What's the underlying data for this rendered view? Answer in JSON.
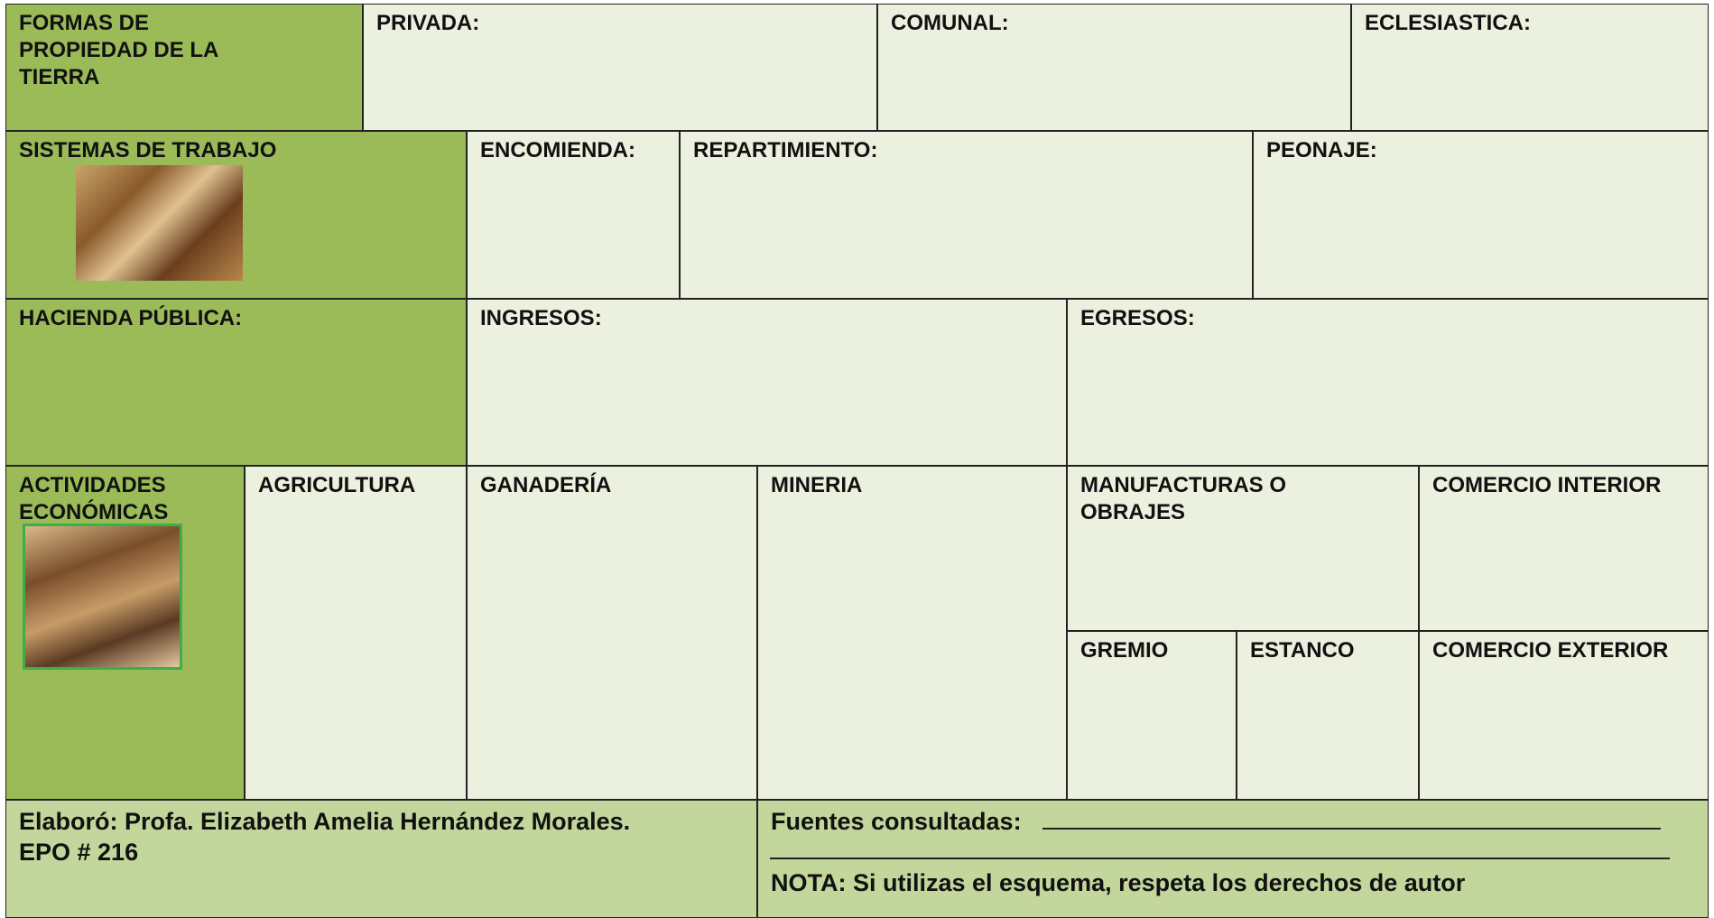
{
  "cells": [
    {
      "label": "FORMAS DE PROPIEDAD DE LA TIERRA"
    },
    {
      "label": "PRIVADA:"
    },
    {
      "label": "COMUNAL:"
    },
    {
      "label": "ECLESIASTICA:"
    },
    {
      "label": "SISTEMAS DE TRABAJO"
    },
    {
      "label": "ENCOMIENDA:"
    },
    {
      "label": "REPARTIMIENTO:"
    },
    {
      "label": "PEONAJE:"
    },
    {
      "label": "HACIENDA PÚBLICA:"
    },
    {
      "label": "INGRESOS:"
    },
    {
      "label": "EGRESOS:"
    },
    {
      "label": "ACTIVIDADES ECONÓMICAS"
    },
    {
      "label": "AGRICULTURA"
    },
    {
      "label": "GANADERÍA"
    },
    {
      "label": "MINERIA"
    },
    {
      "label": "MANUFACTURAS O OBRAJES"
    },
    {
      "label": "COMERCIO INTERIOR"
    },
    {
      "label": "GREMIO"
    },
    {
      "label": "ESTANCO"
    },
    {
      "label": "COMERCIO EXTERIOR"
    }
  ],
  "footer": {
    "author": [
      "Elaboró: Profa. Elizabeth Amelia Hernández Morales.",
      "EPO # 216"
    ],
    "sources": "Fuentes consultadas:",
    "note": "NOTA: Si utilizas el esquema, respeta los derechos de autor"
  }
}
